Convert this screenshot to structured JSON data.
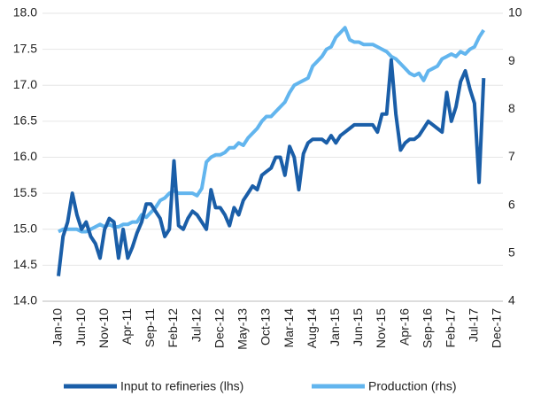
{
  "chart_data": {
    "type": "line",
    "categories": [
      "Jan-10",
      null,
      null,
      null,
      null,
      "Jun-10",
      null,
      null,
      null,
      null,
      "Nov-10",
      null,
      null,
      null,
      null,
      "Apr-11",
      null,
      null,
      null,
      null,
      "Sep-11",
      null,
      null,
      null,
      null,
      "Feb-12",
      null,
      null,
      null,
      null,
      "Jul-12",
      null,
      null,
      null,
      null,
      "Dec-12",
      null,
      null,
      null,
      null,
      "May-13",
      null,
      null,
      null,
      null,
      "Oct-13",
      null,
      null,
      null,
      null,
      "Mar-14",
      null,
      null,
      null,
      null,
      "Aug-14",
      null,
      null,
      null,
      null,
      "Jan-15",
      null,
      null,
      null,
      null,
      "Jun-15",
      null,
      null,
      null,
      null,
      "Nov-15",
      null,
      null,
      null,
      null,
      "Apr-16",
      null,
      null,
      null,
      null,
      "Sep-16",
      null,
      null,
      null,
      null,
      "Feb-17",
      null,
      null,
      null,
      null,
      "Jul-17",
      null,
      null,
      null,
      null,
      "Dec-17"
    ],
    "series": [
      {
        "name": "Input to refineries (lhs)",
        "color": "#1a5ea8",
        "axis": "y",
        "values": [
          14.35,
          14.9,
          15.1,
          15.5,
          15.2,
          15.0,
          15.1,
          14.9,
          14.8,
          14.6,
          15.0,
          15.15,
          15.1,
          14.6,
          15.0,
          14.6,
          14.75,
          14.95,
          15.1,
          15.35,
          15.35,
          15.25,
          15.15,
          14.9,
          15.0,
          15.95,
          15.05,
          15.0,
          15.15,
          15.25,
          15.2,
          15.1,
          15.0,
          15.55,
          15.3,
          15.3,
          15.2,
          15.05,
          15.3,
          15.2,
          15.4,
          15.5,
          15.6,
          15.55,
          15.75,
          15.8,
          15.85,
          16.0,
          16.0,
          15.75,
          16.15,
          16.0,
          15.55,
          16.05,
          16.2,
          16.25,
          16.25,
          16.25,
          16.2,
          16.3,
          16.2,
          16.3,
          16.35,
          16.4,
          16.45,
          16.45,
          16.45,
          16.45,
          16.45,
          16.35,
          16.6,
          16.6,
          17.35,
          16.6,
          16.1,
          16.2,
          16.25,
          16.25,
          16.3,
          16.4,
          16.5,
          16.45,
          16.4,
          16.35,
          16.9,
          16.5,
          16.7,
          17.05,
          17.2,
          16.95,
          16.75,
          15.65,
          17.1,
          null,
          null,
          null
        ]
      },
      {
        "name": "Production (rhs)",
        "color": "#62b5ee",
        "axis": "y2",
        "values": [
          5.45,
          5.5,
          5.5,
          5.5,
          5.5,
          5.45,
          5.45,
          5.5,
          5.55,
          5.6,
          5.55,
          5.6,
          5.55,
          5.55,
          5.6,
          5.6,
          5.65,
          5.65,
          5.8,
          5.75,
          5.85,
          5.95,
          6.1,
          6.15,
          6.25,
          6.3,
          6.25,
          6.25,
          6.25,
          6.25,
          6.2,
          6.35,
          6.9,
          7.0,
          7.05,
          7.05,
          7.1,
          7.2,
          7.2,
          7.3,
          7.25,
          7.4,
          7.5,
          7.6,
          7.75,
          7.85,
          7.85,
          7.95,
          8.05,
          8.15,
          8.35,
          8.5,
          8.55,
          8.6,
          8.65,
          8.9,
          9.0,
          9.1,
          9.25,
          9.3,
          9.5,
          9.6,
          9.7,
          9.45,
          9.4,
          9.4,
          9.35,
          9.35,
          9.35,
          9.3,
          9.25,
          9.2,
          9.1,
          9.05,
          8.95,
          8.85,
          8.75,
          8.7,
          8.75,
          8.6,
          8.8,
          8.85,
          8.9,
          9.05,
          9.1,
          9.15,
          9.1,
          9.2,
          9.15,
          9.25,
          9.3,
          9.5,
          9.65,
          null,
          null,
          null
        ]
      }
    ],
    "ylim": [
      14,
      18
    ],
    "yticks": [
      {
        "value": 14,
        "label": "14.0"
      },
      14.5,
      {
        "value": 15,
        "label": "15.0"
      },
      15.5,
      {
        "value": 16,
        "label": "16.0"
      },
      16.5,
      {
        "value": 17,
        "label": "17.0"
      },
      17.5,
      {
        "value": 18,
        "label": "18.0"
      }
    ],
    "y2lim": [
      4,
      10
    ],
    "y2ticks": [
      4,
      5,
      6,
      7,
      8,
      9,
      10
    ],
    "grid": true,
    "legend": "bottom"
  }
}
